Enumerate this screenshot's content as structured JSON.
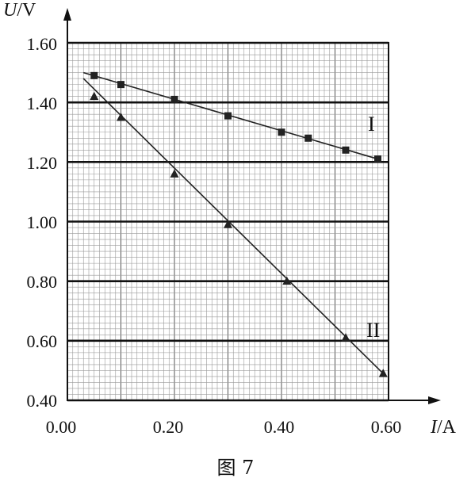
{
  "figure_caption": "图 7",
  "chart_data": {
    "type": "line",
    "xlabel_symbol": "I",
    "xlabel_unit": "/A",
    "ylabel_symbol": "U",
    "ylabel_unit": "/V",
    "xlim": [
      0.0,
      0.6
    ],
    "ylim": [
      0.4,
      1.6
    ],
    "x_ticks": [
      "0.00",
      "0.20",
      "0.40",
      "0.60"
    ],
    "y_ticks": [
      "0.40",
      "0.60",
      "0.80",
      "1.00",
      "1.20",
      "1.40",
      "1.60"
    ],
    "grid": true,
    "series": [
      {
        "name": "I",
        "marker": "square",
        "points": [
          [
            0.05,
            1.49
          ],
          [
            0.1,
            1.46
          ],
          [
            0.2,
            1.41
          ],
          [
            0.3,
            1.355
          ],
          [
            0.4,
            1.3
          ],
          [
            0.45,
            1.28
          ],
          [
            0.52,
            1.24
          ],
          [
            0.58,
            1.21
          ]
        ],
        "fit_line": [
          [
            0.03,
            1.5
          ],
          [
            0.58,
            1.21
          ]
        ]
      },
      {
        "name": "II",
        "marker": "triangle",
        "points": [
          [
            0.05,
            1.42
          ],
          [
            0.1,
            1.35
          ],
          [
            0.2,
            1.16
          ],
          [
            0.3,
            0.99
          ],
          [
            0.41,
            0.8
          ],
          [
            0.52,
            0.61
          ],
          [
            0.59,
            0.49
          ]
        ],
        "fit_line": [
          [
            0.03,
            1.48
          ],
          [
            0.59,
            0.49
          ]
        ]
      }
    ]
  }
}
